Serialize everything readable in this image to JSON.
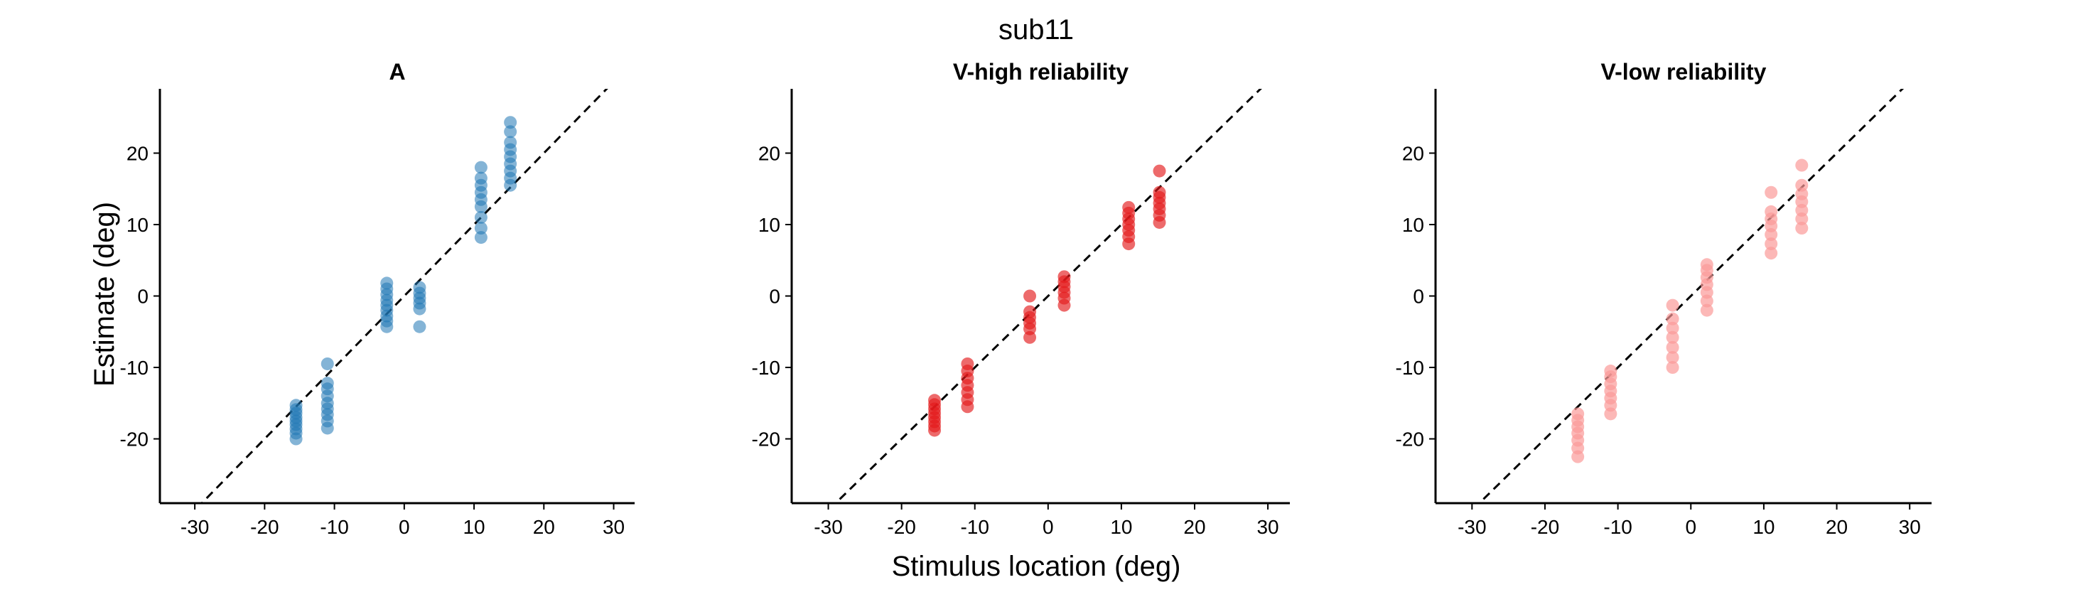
{
  "figure_title": "sub11",
  "xlabel": "Stimulus location (deg)",
  "ylabel": "Estimate (deg)",
  "chart_data": [
    {
      "type": "scatter",
      "title": "A",
      "color": "#1f77b4",
      "point_alpha": 0.55,
      "xlim": [
        -35,
        33
      ],
      "ylim": [
        -29,
        29
      ],
      "xticks": [
        -30,
        -20,
        -10,
        0,
        10,
        20,
        30
      ],
      "yticks": [
        -20,
        -10,
        0,
        10,
        20
      ],
      "identity_line": true,
      "points": [
        {
          "x": -15.5,
          "y": [
            -20,
            -19.2,
            -18.6,
            -18.0,
            -17.5,
            -17.0,
            -16.4,
            -15.9,
            -15.3
          ]
        },
        {
          "x": -11,
          "y": [
            -18.5,
            -17.5,
            -16.6,
            -15.8,
            -15.0,
            -14.0,
            -13.0,
            -12.2,
            -9.5
          ]
        },
        {
          "x": -2.5,
          "y": [
            -4.3,
            -3.5,
            -2.8,
            -2.0,
            -1.3,
            -0.6,
            0.2,
            1.0,
            1.8
          ]
        },
        {
          "x": 2.2,
          "y": [
            -4.3,
            -1.8,
            -1.0,
            -0.3,
            0.4,
            1.2
          ]
        },
        {
          "x": 11,
          "y": [
            8.2,
            9.5,
            11.0,
            12.5,
            13.5,
            14.5,
            15.5,
            16.5,
            18.0
          ]
        },
        {
          "x": 15.2,
          "y": [
            15.5,
            16.5,
            17.5,
            18.5,
            19.5,
            20.5,
            21.5,
            23.0,
            24.3
          ]
        }
      ]
    },
    {
      "type": "scatter",
      "title": "V-high reliability",
      "color": "#e31a1c",
      "point_alpha": 0.65,
      "xlim": [
        -35,
        33
      ],
      "ylim": [
        -29,
        29
      ],
      "xticks": [
        -30,
        -20,
        -10,
        0,
        10,
        20,
        30
      ],
      "yticks": [
        -20,
        -10,
        0,
        10,
        20
      ],
      "identity_line": true,
      "points": [
        {
          "x": -15.5,
          "y": [
            -18.8,
            -18.2,
            -17.6,
            -17.0,
            -16.4,
            -15.8,
            -15.2,
            -14.6
          ]
        },
        {
          "x": -11,
          "y": [
            -15.5,
            -14.5,
            -13.5,
            -12.5,
            -11.5,
            -10.5,
            -9.5
          ]
        },
        {
          "x": -2.5,
          "y": [
            -5.8,
            -4.6,
            -3.8,
            -3.0,
            -2.2,
            0.0
          ]
        },
        {
          "x": 2.2,
          "y": [
            -1.3,
            -0.3,
            0.5,
            1.3,
            2.0,
            2.7
          ]
        },
        {
          "x": 11,
          "y": [
            7.3,
            8.3,
            9.2,
            10.0,
            10.8,
            11.6,
            12.4
          ]
        },
        {
          "x": 15.2,
          "y": [
            10.3,
            11.3,
            12.2,
            13.0,
            13.8,
            14.5,
            17.5
          ]
        }
      ]
    },
    {
      "type": "scatter",
      "title": "V-low reliability",
      "color": "#fb9a99",
      "point_alpha": 0.7,
      "xlim": [
        -35,
        33
      ],
      "ylim": [
        -29,
        29
      ],
      "xticks": [
        -30,
        -20,
        -10,
        0,
        10,
        20,
        30
      ],
      "yticks": [
        -20,
        -10,
        0,
        10,
        20
      ],
      "identity_line": true,
      "points": [
        {
          "x": -15.5,
          "y": [
            -22.5,
            -21.3,
            -20.2,
            -19.2,
            -18.3,
            -17.4,
            -16.5
          ]
        },
        {
          "x": -11,
          "y": [
            -16.5,
            -15.3,
            -14.3,
            -13.3,
            -12.3,
            -11.3,
            -10.5
          ]
        },
        {
          "x": -2.5,
          "y": [
            -10.0,
            -8.6,
            -7.2,
            -5.8,
            -4.5,
            -3.2,
            -1.3
          ]
        },
        {
          "x": 2.2,
          "y": [
            -2.0,
            -0.7,
            0.5,
            1.6,
            2.6,
            3.6,
            4.4
          ]
        },
        {
          "x": 11,
          "y": [
            6.0,
            7.3,
            8.6,
            9.8,
            10.8,
            11.8,
            14.5
          ]
        },
        {
          "x": 15.2,
          "y": [
            9.5,
            10.8,
            12.0,
            13.2,
            14.3,
            15.5,
            18.3
          ]
        }
      ]
    }
  ]
}
